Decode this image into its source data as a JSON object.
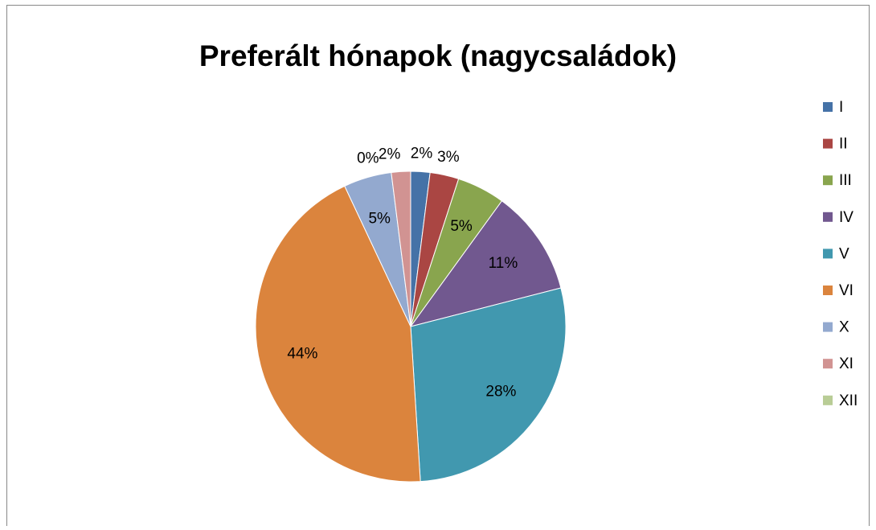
{
  "chart_data": {
    "type": "pie",
    "title": "Preferált hónapok (nagycsaládok)",
    "categories": [
      "I",
      "II",
      "III",
      "IV",
      "V",
      "VI",
      "X",
      "XI",
      "XII"
    ],
    "values": [
      2,
      3,
      5,
      11,
      28,
      44,
      5,
      2,
      0
    ],
    "value_labels": [
      "2%",
      "3%",
      "5%",
      "11%",
      "28%",
      "44%",
      "5%",
      "2%",
      "0%"
    ],
    "colors": [
      "#4572a7",
      "#aa4643",
      "#89a54e",
      "#71588f",
      "#4198af",
      "#db843d",
      "#93a9cf",
      "#d19392",
      "#b9cd96"
    ],
    "legend": "right"
  }
}
